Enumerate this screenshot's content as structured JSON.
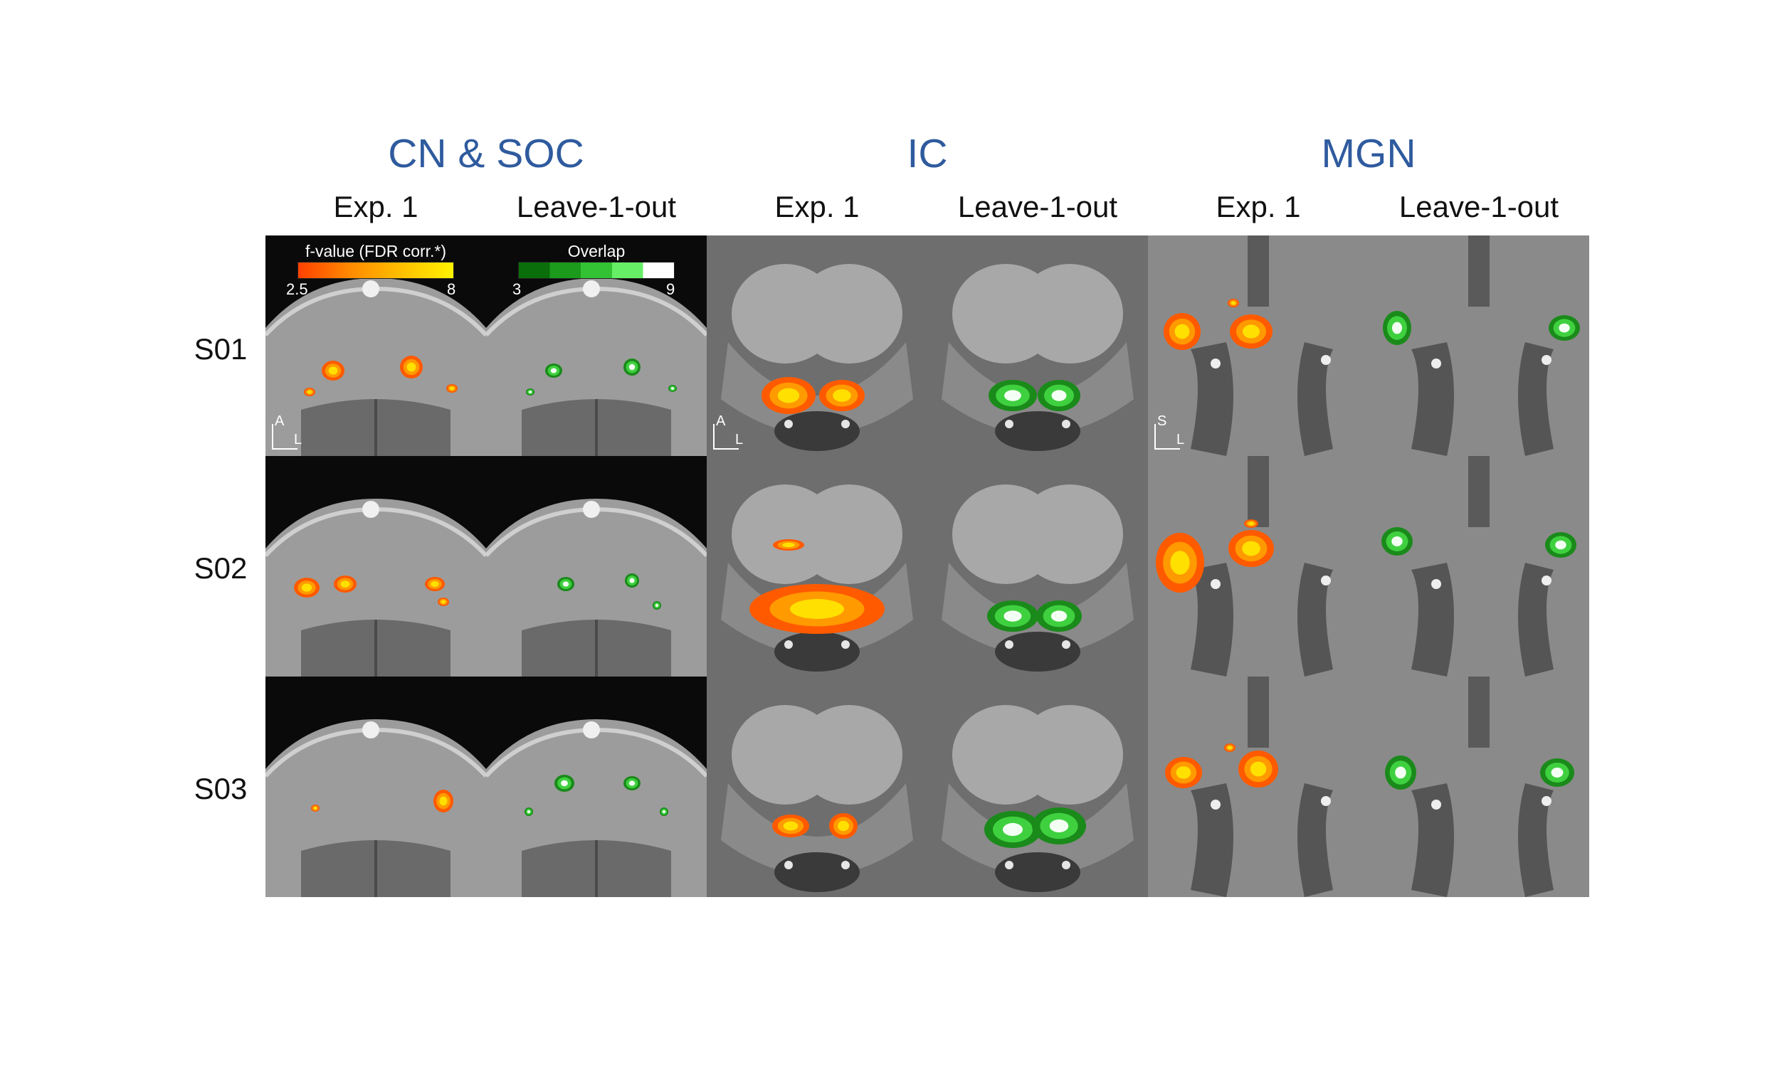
{
  "groups": [
    {
      "title": "CN & SOC"
    },
    {
      "title": "IC"
    },
    {
      "title": "MGN"
    }
  ],
  "columns": [
    "Exp. 1",
    "Leave-1-out",
    "Exp. 1",
    "Leave-1-out",
    "Exp. 1",
    "Leave-1-out"
  ],
  "rows": [
    "S01",
    "S02",
    "S03"
  ],
  "legend_fvalue": {
    "title": "f-value (FDR corr.*)",
    "min": "2.5",
    "max": "8",
    "colors": [
      "#ff4000",
      "#ff8a00",
      "#ffc000",
      "#fff200"
    ]
  },
  "legend_overlap": {
    "title": "Overlap",
    "min": "3",
    "max": "9",
    "colors": [
      "#0a6e0a",
      "#1c9a1c",
      "#33c233",
      "#66ee66",
      "#ffffff"
    ]
  },
  "orientation": {
    "axial": {
      "up": "A",
      "right": "L"
    },
    "coronal": {
      "up": "S",
      "right": "L"
    }
  }
}
